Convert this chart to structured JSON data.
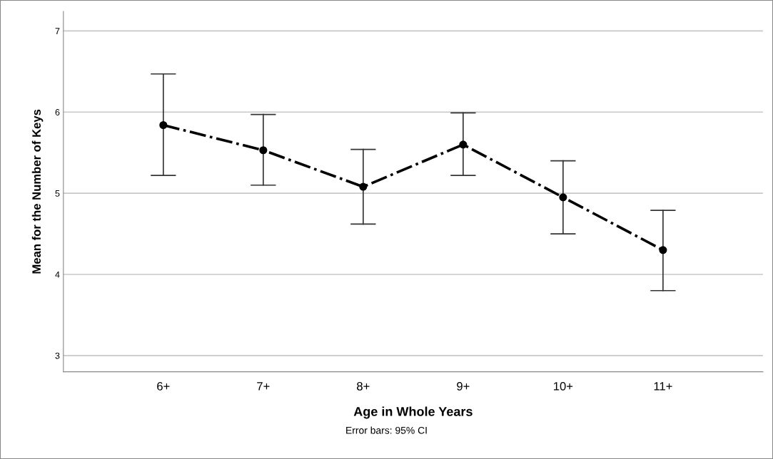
{
  "chart_data": {
    "type": "line",
    "xlabel": "Age in Whole Years",
    "ylabel": "Mean for the Number of Keys",
    "categories": [
      "6+",
      "7+",
      "8+",
      "9+",
      "10+",
      "11+"
    ],
    "series": [
      {
        "color": "#000000",
        "values": [
          5.84,
          5.53,
          5.08,
          5.6,
          4.95,
          4.3
        ],
        "errors": [
          [
            5.22,
            6.47
          ],
          [
            5.1,
            5.97
          ],
          [
            4.62,
            5.54
          ],
          [
            5.22,
            5.99
          ],
          [
            4.5,
            5.4
          ],
          [
            3.8,
            4.79
          ]
        ]
      }
    ],
    "ylim": [
      2.8,
      7.24
    ],
    "yticks": [
      3,
      4,
      5,
      6,
      7
    ],
    "grid": "y",
    "marker": "circle",
    "line_style": "dashdot",
    "annotations": [
      "Error bars: 95% CI"
    ]
  }
}
